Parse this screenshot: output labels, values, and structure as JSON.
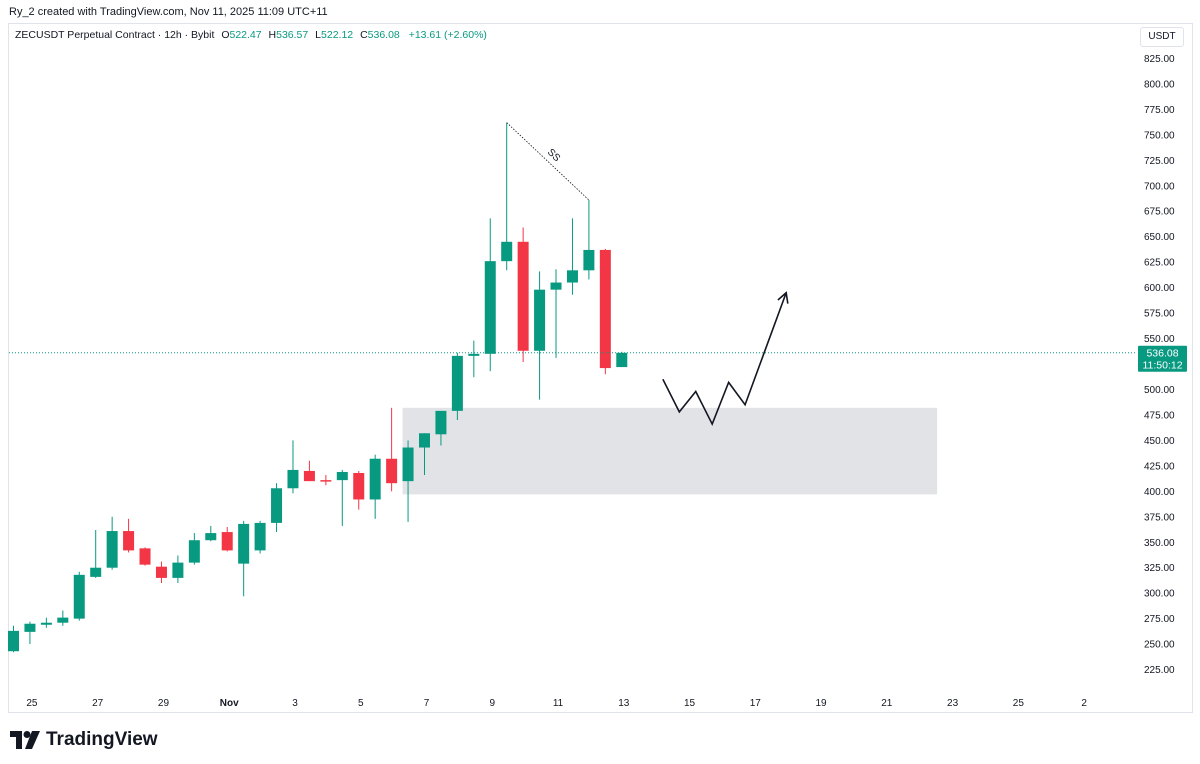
{
  "header": {
    "credit": "Ry_2 created with TradingView.com, Nov 11, 2025 11:09 UTC+11"
  },
  "legend": {
    "symbol": "ZECUSDT Perpetual Contract · 12h · Bybit",
    "o_label": "O",
    "o_value": "522.47",
    "h_label": "H",
    "h_value": "536.57",
    "l_label": "L",
    "l_value": "522.12",
    "c_label": "C",
    "c_value": "536.08",
    "change": "+13.61 (+2.60%)"
  },
  "currency": "USDT",
  "price_badge": {
    "price": "536.08",
    "countdown": "11:50:12"
  },
  "brand": {
    "name": "TradingView"
  },
  "colors": {
    "up": "#089981",
    "down": "#f23645",
    "zone": "#dadce0",
    "line": "#089981"
  },
  "chart_data": {
    "type": "candlestick",
    "title": "ZECUSDT Perpetual Contract · 12h · Bybit",
    "ylim": [
      200,
      850
    ],
    "y_ticks": [
      "225.00",
      "250.00",
      "275.00",
      "300.00",
      "325.00",
      "350.00",
      "375.00",
      "400.00",
      "425.00",
      "450.00",
      "475.00",
      "500.00",
      "525.00",
      "550.00",
      "575.00",
      "600.00",
      "625.00",
      "650.00",
      "675.00",
      "700.00",
      "725.00",
      "750.00",
      "775.00",
      "800.00",
      "825.00"
    ],
    "x_ticks": [
      "25",
      "27",
      "29",
      "Nov",
      "3",
      "5",
      "7",
      "9",
      "11",
      "13",
      "15",
      "17",
      "19",
      "21",
      "23",
      "25",
      "2"
    ],
    "x_tick_index": [
      1,
      5,
      9,
      13,
      17,
      21,
      25,
      29,
      33,
      37,
      41,
      45,
      49,
      53,
      57,
      61,
      65
    ],
    "candles": [
      {
        "o": 243,
        "h": 268,
        "l": 242,
        "c": 263
      },
      {
        "o": 262,
        "h": 272,
        "l": 250,
        "c": 270
      },
      {
        "o": 269,
        "h": 276,
        "l": 266,
        "c": 271
      },
      {
        "o": 271,
        "h": 283,
        "l": 268,
        "c": 276
      },
      {
        "o": 275,
        "h": 321,
        "l": 273,
        "c": 318
      },
      {
        "o": 316,
        "h": 362,
        "l": 315,
        "c": 325
      },
      {
        "o": 325,
        "h": 375,
        "l": 323,
        "c": 361
      },
      {
        "o": 361,
        "h": 373,
        "l": 340,
        "c": 342
      },
      {
        "o": 344,
        "h": 345,
        "l": 327,
        "c": 328
      },
      {
        "o": 326,
        "h": 331,
        "l": 310,
        "c": 315
      },
      {
        "o": 315,
        "h": 337,
        "l": 310,
        "c": 330
      },
      {
        "o": 330,
        "h": 359,
        "l": 328,
        "c": 352
      },
      {
        "o": 352,
        "h": 366,
        "l": 351,
        "c": 359
      },
      {
        "o": 360,
        "h": 365,
        "l": 341,
        "c": 342
      },
      {
        "o": 329,
        "h": 371,
        "l": 297,
        "c": 368
      },
      {
        "o": 342,
        "h": 371,
        "l": 339,
        "c": 369
      },
      {
        "o": 369,
        "h": 408,
        "l": 360,
        "c": 403
      },
      {
        "o": 403,
        "h": 450,
        "l": 398,
        "c": 421
      },
      {
        "o": 420,
        "h": 430,
        "l": 411,
        "c": 410
      },
      {
        "o": 411,
        "h": 416,
        "l": 406,
        "c": 410
      },
      {
        "o": 411,
        "h": 421,
        "l": 366,
        "c": 419
      },
      {
        "o": 418,
        "h": 420,
        "l": 382,
        "c": 392
      },
      {
        "o": 392,
        "h": 436,
        "l": 373,
        "c": 432
      },
      {
        "o": 432,
        "h": 482,
        "l": 400,
        "c": 408
      },
      {
        "o": 410,
        "h": 450,
        "l": 370,
        "c": 443
      },
      {
        "o": 443,
        "h": 457,
        "l": 416,
        "c": 457
      },
      {
        "o": 456,
        "h": 478,
        "l": 445,
        "c": 479
      },
      {
        "o": 479,
        "h": 536,
        "l": 470,
        "c": 533
      },
      {
        "o": 533,
        "h": 548,
        "l": 512,
        "c": 535
      },
      {
        "o": 535,
        "h": 668,
        "l": 518,
        "c": 626
      },
      {
        "o": 626,
        "h": 762,
        "l": 617,
        "c": 645
      },
      {
        "o": 645,
        "h": 659,
        "l": 527,
        "c": 538
      },
      {
        "o": 538,
        "h": 616,
        "l": 490,
        "c": 598
      },
      {
        "o": 598,
        "h": 618,
        "l": 531,
        "c": 605
      },
      {
        "o": 605,
        "h": 668,
        "l": 593,
        "c": 617
      },
      {
        "o": 617,
        "h": 686,
        "l": 608,
        "c": 637
      },
      {
        "o": 637,
        "h": 638,
        "l": 515,
        "c": 521
      },
      {
        "o": 522,
        "h": 537,
        "l": 522,
        "c": 536
      }
    ],
    "current_price": 536.08,
    "zone": {
      "x_start": 24,
      "x_end": 56,
      "y_low": 397,
      "y_high": 482
    },
    "trendline": {
      "from": {
        "i": 30,
        "v": 762
      },
      "to": {
        "i": 35,
        "v": 686
      },
      "label": "SS"
    },
    "projection": [
      {
        "i": 39.5,
        "v": 510
      },
      {
        "i": 40.5,
        "v": 478
      },
      {
        "i": 41.5,
        "v": 498
      },
      {
        "i": 42.5,
        "v": 466
      },
      {
        "i": 43.5,
        "v": 507
      },
      {
        "i": 44.5,
        "v": 485
      },
      {
        "i": 47,
        "v": 595
      }
    ]
  }
}
